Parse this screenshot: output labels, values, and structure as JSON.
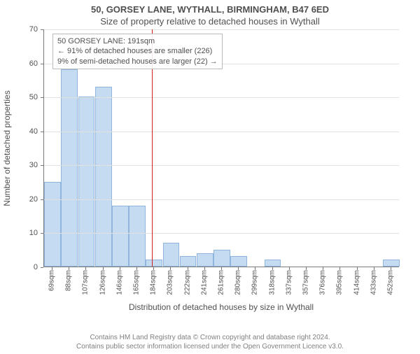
{
  "title_main": "50, GORSEY LANE, WYTHALL, BIRMINGHAM, B47 6ED",
  "title_sub": "Size of property relative to detached houses in Wythall",
  "chart": {
    "type": "histogram",
    "y_label": "Number of detached properties",
    "x_label": "Distribution of detached houses by size in Wythall",
    "y_min": 0,
    "y_max": 70,
    "y_tick_step": 10,
    "y_ticks": [
      0,
      10,
      20,
      30,
      40,
      50,
      60,
      70
    ],
    "x_categories": [
      "69sqm",
      "88sqm",
      "107sqm",
      "126sqm",
      "146sqm",
      "165sqm",
      "184sqm",
      "203sqm",
      "222sqm",
      "241sqm",
      "261sqm",
      "280sqm",
      "299sqm",
      "318sqm",
      "337sqm",
      "357sqm",
      "376sqm",
      "395sqm",
      "414sqm",
      "433sqm",
      "452sqm"
    ],
    "values": [
      25,
      58,
      50,
      53,
      18,
      18,
      2,
      7,
      3,
      4,
      5,
      3,
      0,
      2,
      0,
      0,
      0,
      0,
      0,
      0,
      2
    ],
    "bar_fill": "#c5dbf2",
    "bar_border": "#8fb5dd",
    "grid_color": "#e0e0e0",
    "axis_color": "#7a7a7a",
    "background": "#ffffff",
    "reference_line_color": "#d02020",
    "reference_value_sqm": 191,
    "reference_x_min_sqm": 69,
    "reference_x_bin_width_sqm": 19.15,
    "annotation": {
      "line1": "50 GORSEY LANE: 191sqm",
      "line2": "← 91% of detached houses are smaller (226)",
      "line3": "9% of semi-detached houses are larger (22) →"
    }
  },
  "footer": {
    "line1": "Contains HM Land Registry data © Crown copyright and database right 2024.",
    "line2": "Contains public sector information licensed under the Open Government Licence v3.0."
  }
}
